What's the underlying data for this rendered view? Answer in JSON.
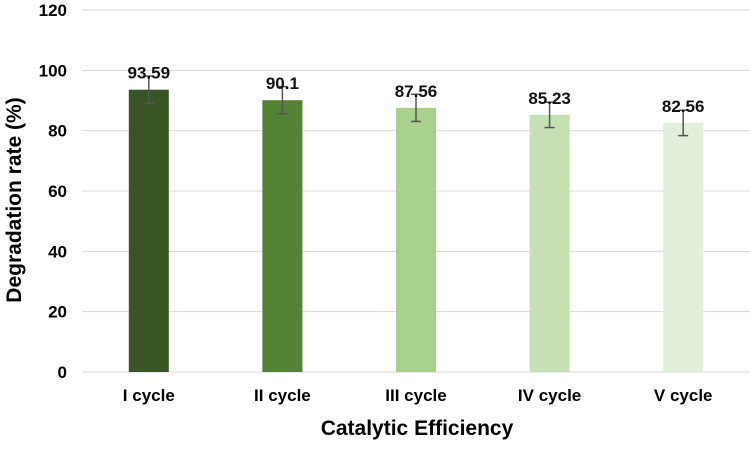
{
  "chart_data": {
    "type": "bar",
    "title": "",
    "xlabel": "Catalytic Efficiency",
    "ylabel": "Degradation rate (%)",
    "ylim": [
      0,
      120
    ],
    "yticks": [
      0,
      20,
      40,
      60,
      80,
      100,
      120
    ],
    "grid": true,
    "legend": "none",
    "categories": [
      "I cycle",
      "II cycle",
      "III cycle",
      "IV cycle",
      "V cycle"
    ],
    "values": [
      93.59,
      90.1,
      87.56,
      85.23,
      82.56
    ],
    "data_labels": [
      "93.59",
      "90.1",
      "87.56",
      "85.23",
      "82.56"
    ],
    "errors": [
      4.5,
      4.5,
      4.5,
      4.2,
      4.2
    ],
    "colors": [
      "#375623",
      "#548235",
      "#a9d18e",
      "#c5e0b4",
      "#e2efda"
    ],
    "error_bar_color": "#555555"
  }
}
